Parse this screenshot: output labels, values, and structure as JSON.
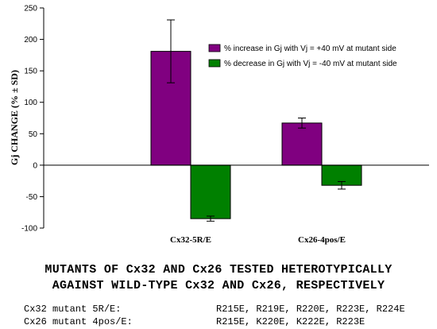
{
  "chart_data": {
    "type": "bar",
    "ylabel": "Gj CHANGE (% ± SD)",
    "ylim": [
      -100,
      250
    ],
    "yticks": [
      -100,
      -50,
      0,
      50,
      100,
      150,
      200,
      250
    ],
    "categories": [
      "Cx32-5R/E",
      "Cx26-4pos/E"
    ],
    "series": [
      {
        "name": "% increase in Gj with Vj = +40 mV at mutant side",
        "color": "#800080",
        "values": [
          181,
          67
        ],
        "errors": [
          50,
          8
        ]
      },
      {
        "name": "% decrease in Gj with Vj = -40 mV at mutant side",
        "color": "#008000",
        "values": [
          -85,
          -32
        ],
        "errors": [
          4,
          6
        ]
      }
    ],
    "legend_position": "top-right",
    "grid": false
  },
  "caption": {
    "line1": "MUTANTS OF Cx32 AND Cx26 TESTED HETEROTYPICALLY",
    "line2": "AGAINST WILD-TYPE Cx32 AND Cx26, RESPECTIVELY"
  },
  "mutants": [
    {
      "label": "Cx32 mutant 5R/E:",
      "residues": "R215E, R219E, R220E, R223E, R224E"
    },
    {
      "label": "Cx26 mutant 4pos/E:",
      "residues": "R215E, K220E, K222E, R223E"
    }
  ]
}
